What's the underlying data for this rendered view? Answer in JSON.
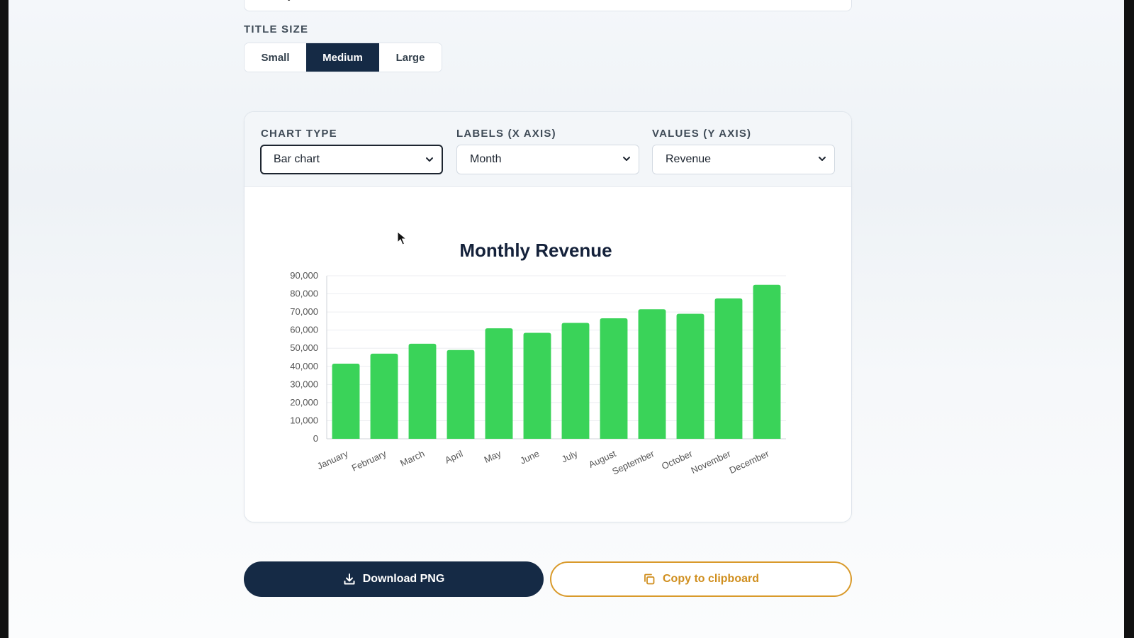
{
  "title_field": {
    "value": "Monthly Revenue"
  },
  "title_size": {
    "label": "TITLE SIZE",
    "options": [
      "Small",
      "Medium",
      "Large"
    ],
    "selected": "Medium"
  },
  "controls": {
    "chart_type": {
      "label": "CHART TYPE",
      "value": "Bar chart"
    },
    "labels_axis": {
      "label": "LABELS (X AXIS)",
      "value": "Month"
    },
    "values_axis": {
      "label": "VALUES (Y AXIS)",
      "value": "Revenue"
    }
  },
  "actions": {
    "download_label": "Download PNG",
    "copy_label": "Copy to clipboard"
  },
  "colors": {
    "navy": "#152a45",
    "bar_green": "#3ad359",
    "accent_orange": "#d99a2b"
  },
  "icons": {
    "download": "download-icon",
    "copy": "copy-icon",
    "chevron": "chevron-down-icon"
  },
  "chart_data": {
    "type": "bar",
    "title": "Monthly Revenue",
    "categories": [
      "January",
      "February",
      "March",
      "April",
      "May",
      "June",
      "July",
      "August",
      "September",
      "October",
      "November",
      "December"
    ],
    "values": [
      41500,
      47000,
      52500,
      49000,
      61000,
      58500,
      64000,
      66500,
      71500,
      69000,
      77500,
      85000
    ],
    "ylim": [
      0,
      90000
    ],
    "yticks": [
      0,
      10000,
      20000,
      30000,
      40000,
      50000,
      60000,
      70000,
      80000,
      90000
    ],
    "ytick_labels": [
      "0",
      "10,000",
      "20,000",
      "30,000",
      "40,000",
      "50,000",
      "60,000",
      "70,000",
      "80,000",
      "90,000"
    ],
    "xlabel": "",
    "ylabel": "",
    "grid": true,
    "legend": "none"
  }
}
